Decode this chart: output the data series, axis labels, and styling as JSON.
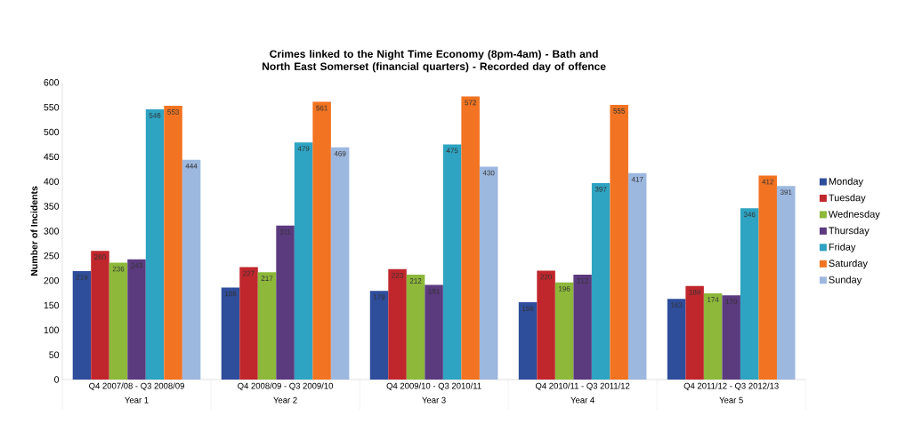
{
  "chart_data": {
    "type": "bar",
    "title": "Crimes linked to the Night Time Economy (8pm-4am) - Bath and North East Somerset (financial quarters) - Recorded day of offence",
    "ylabel": "Number of Incidents",
    "categories": [
      "Q4 2007/08 - Q3 2008/09",
      "Q4 2008/09 - Q3 2009/10",
      "Q4 2009/10 - Q3 2010/11",
      "Q4 2010/11 - Q3 2011/12",
      "Q4 2011/12 - Q3 2012/13"
    ],
    "annotations": [
      "Year 1",
      "Year 2",
      "Year 3",
      "Year 4",
      "Year 5"
    ],
    "series": [
      {
        "name": "Monday",
        "color": "#2e4d9b",
        "values": [
          219,
          186,
          179,
          156,
          163
        ]
      },
      {
        "name": "Tuesday",
        "color": "#c0272d",
        "values": [
          260,
          227,
          223,
          220,
          189
        ]
      },
      {
        "name": "Wednesday",
        "color": "#8db83a",
        "values": [
          236,
          217,
          212,
          196,
          174
        ]
      },
      {
        "name": "Thursday",
        "color": "#5b3a7e",
        "values": [
          243,
          311,
          191,
          212,
          170
        ]
      },
      {
        "name": "Friday",
        "color": "#2ea3c2",
        "values": [
          546,
          479,
          475,
          397,
          346
        ]
      },
      {
        "name": "Saturday",
        "color": "#f27321",
        "values": [
          553,
          561,
          572,
          555,
          412
        ]
      },
      {
        "name": "Sunday",
        "color": "#9db8df",
        "values": [
          444,
          469,
          430,
          417,
          391
        ]
      }
    ],
    "ylim": [
      0,
      600
    ],
    "yticks": [
      0,
      50,
      100,
      150,
      200,
      250,
      300,
      350,
      400,
      450,
      500,
      550,
      600
    ],
    "data_labels": true,
    "grid": false,
    "legend": "right"
  }
}
